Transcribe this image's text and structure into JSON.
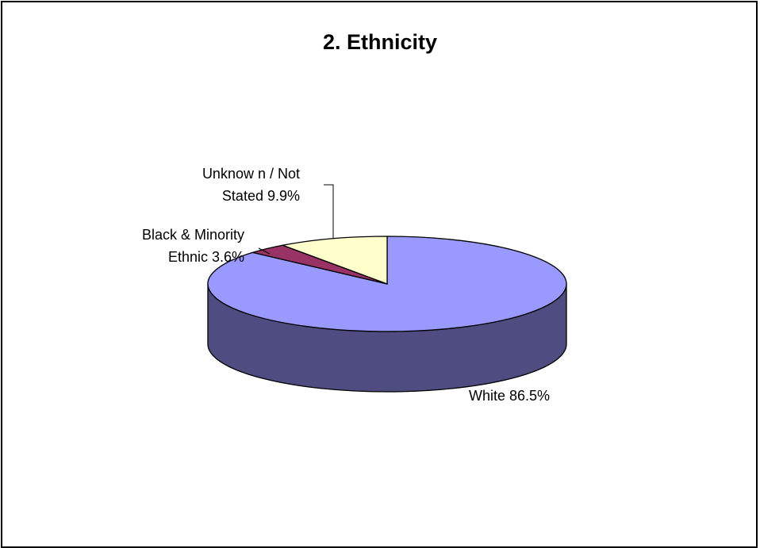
{
  "chart_data": {
    "type": "pie",
    "style": "3d",
    "title": "2.  Ethnicity",
    "slices": [
      {
        "category": "White",
        "value": 86.5,
        "value_label": "86.5%",
        "color": "#9999FF",
        "side_color": "#4E4C80"
      },
      {
        "category": "Black & Minority Ethnic",
        "value": 3.6,
        "value_label": "3.6%",
        "color": "#993366",
        "side_color": "#4D1A33"
      },
      {
        "category": "Unknow n / Not Stated",
        "value": 9.9,
        "value_label": "9.9%",
        "color": "#FFFFCC",
        "side_color": "#808066"
      }
    ],
    "data_labels": [
      {
        "lines": [
          "Unknow n / Not",
          "Stated 9.9%"
        ]
      },
      {
        "lines": [
          "Black & Minority",
          "Ethnic 3.6%"
        ]
      },
      {
        "lines": [
          "White 86.5%"
        ]
      }
    ],
    "legend": "none",
    "grid": false
  }
}
